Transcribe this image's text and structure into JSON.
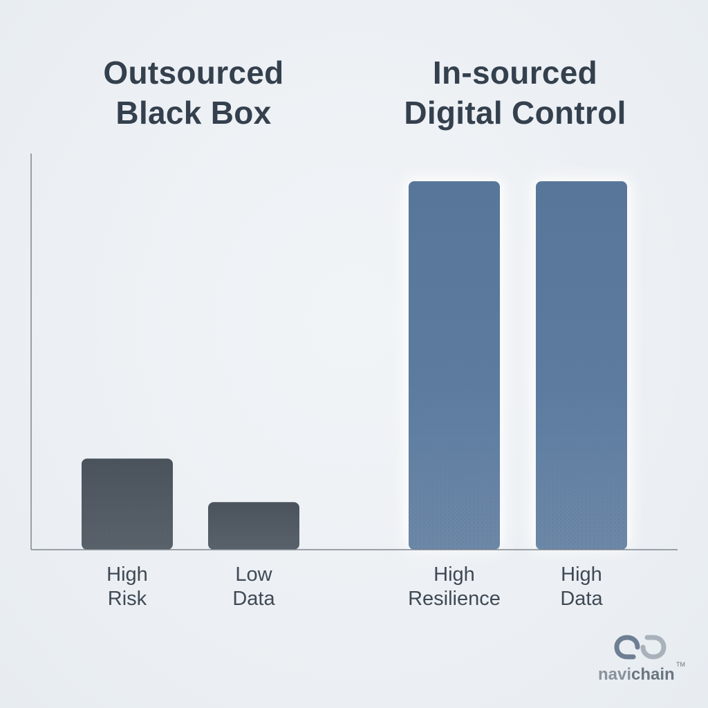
{
  "chart_data": {
    "type": "bar",
    "groups": [
      {
        "title_lines": [
          "Outsourced",
          "Black Box"
        ],
        "bars": [
          {
            "label_lines": [
              "High",
              "Risk"
            ],
            "value": 23
          },
          {
            "label_lines": [
              "Low",
              "Data"
            ],
            "value": 12
          }
        ]
      },
      {
        "title_lines": [
          "In-sourced",
          "Digital Control"
        ],
        "bars": [
          {
            "label_lines": [
              "High",
              "Resilience"
            ],
            "value": 93
          },
          {
            "label_lines": [
              "High",
              "Data"
            ],
            "value": 93
          }
        ]
      }
    ],
    "ylim": [
      0,
      100
    ],
    "grid": false,
    "legend": "none",
    "colors": {
      "left_group": "#4d5560",
      "right_group": "#5b7a9e",
      "axis": "#7e868e"
    }
  },
  "logo": {
    "text_light": "navi",
    "text_bold": "chain",
    "tm": "TM",
    "icon": "infinity-link-icon"
  }
}
